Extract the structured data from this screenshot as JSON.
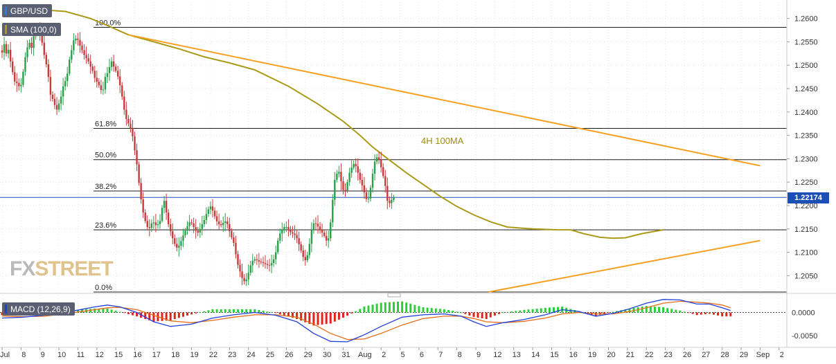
{
  "chart_data": [
    {
      "type": "candlestick",
      "symbol": "GBP/USD",
      "indicator_label": "SMA (100,0)",
      "indicator_color": "#aa9a18",
      "ylim": [
        1.2015,
        1.2635
      ],
      "y_ticks": [
        "1.2600",
        "1.2550",
        "1.2500",
        "1.2450",
        "1.2400",
        "1.2350",
        "1.2300",
        "1.2250",
        "1.2200",
        "1.2150",
        "1.2100",
        "1.2050"
      ],
      "x_tick_labels": [
        "Jul",
        "8",
        "9",
        "10",
        "11",
        "12",
        "15",
        "16",
        "17",
        "18",
        "19",
        "22",
        "23",
        "24",
        "25",
        "26",
        "29",
        "30",
        "31",
        "Aug",
        "2",
        "5",
        "6",
        "7",
        "8",
        "9",
        "12",
        "13",
        "14",
        "15",
        "16",
        "19",
        "20",
        "21",
        "22",
        "23",
        "26",
        "27",
        "28",
        "29",
        "Sep",
        "2"
      ],
      "x_tick_bars": [
        0,
        9,
        18,
        27,
        36,
        45,
        54,
        63,
        72,
        81,
        90,
        99,
        108,
        117,
        126,
        135,
        144,
        153,
        162,
        171,
        180,
        189,
        198,
        207,
        216,
        225,
        234,
        243,
        252,
        261,
        270,
        279,
        288,
        297,
        306,
        315,
        324,
        333,
        342,
        351,
        360,
        369
      ],
      "current_price": "1.22174",
      "fib_levels": [
        {
          "label": "100.0%",
          "value": 1.2581
        },
        {
          "label": "61.8%",
          "value": 1.2365
        },
        {
          "label": "50.0%",
          "value": 1.2298
        },
        {
          "label": "38.2%",
          "value": 1.2231
        },
        {
          "label": "23.6%",
          "value": 1.2148
        },
        {
          "label": "0.0%",
          "value": 1.2015
        }
      ],
      "resistance_line": {
        "x": [
          60,
          360
        ],
        "y": [
          1.2565,
          1.2285
        ]
      },
      "support_line": {
        "x": [
          231,
          360
        ],
        "y": [
          1.2015,
          1.2125
        ]
      },
      "annotation": "4H 100MA",
      "up_color": "#26a04a",
      "down_color": "#c8393b",
      "fib_color": "#1a1a1a",
      "trendline_color": "#f5a020",
      "close_path": [
        1.2532,
        1.2527,
        1.2545,
        1.2525,
        1.2533,
        1.2508,
        1.2485,
        1.2465,
        1.2462,
        1.2455,
        1.2458,
        1.2486,
        1.2517,
        1.2538,
        1.2548,
        1.2537,
        1.2562,
        1.2573,
        1.2574,
        1.2566,
        1.2548,
        1.2522,
        1.2502,
        1.2475,
        1.2437,
        1.2428,
        1.2415,
        1.2405,
        1.2418,
        1.2433,
        1.2455,
        1.2466,
        1.2482,
        1.2512,
        1.2532,
        1.2553,
        1.2557,
        1.2554,
        1.2542,
        1.2532,
        1.2522,
        1.2515,
        1.2508,
        1.2497,
        1.2488,
        1.2473,
        1.2465,
        1.2457,
        1.2447,
        1.2448,
        1.2475,
        1.2483,
        1.2496,
        1.2508,
        1.2497,
        1.2488,
        1.2476,
        1.2457,
        1.2433,
        1.2405,
        1.2385,
        1.2375,
        1.2365,
        1.2348,
        1.2318,
        1.2288,
        1.2248,
        1.2213,
        1.2185,
        1.2167,
        1.2154,
        1.2152,
        1.2162,
        1.2164,
        1.2158,
        1.216,
        1.2167,
        1.2195,
        1.221,
        1.2185,
        1.216,
        1.2145,
        1.213,
        1.2118,
        1.211,
        1.2114,
        1.2124,
        1.2136,
        1.2146,
        1.2156,
        1.2164,
        1.2162,
        1.2154,
        1.2146,
        1.2142,
        1.215,
        1.216,
        1.2169,
        1.2182,
        1.2192,
        1.2198,
        1.2189,
        1.2177,
        1.2166,
        1.216,
        1.2158,
        1.2163,
        1.2166,
        1.216,
        1.2145,
        1.2132,
        1.212,
        1.2096,
        1.2073,
        1.2059,
        1.2045,
        1.2038,
        1.2042,
        1.2056,
        1.2072,
        1.2082,
        1.2085,
        1.2083,
        1.208,
        1.2079,
        1.2077,
        1.2075,
        1.2073,
        1.2072,
        1.2077,
        1.2085,
        1.21,
        1.2125,
        1.214,
        1.2148,
        1.2154,
        1.2154,
        1.2148,
        1.2143,
        1.214,
        1.2137,
        1.213,
        1.2117,
        1.2104,
        1.209,
        1.2083,
        1.2094,
        1.2118,
        1.2148,
        1.2162,
        1.2161,
        1.2155,
        1.2147,
        1.2142,
        1.2135,
        1.2125,
        1.213,
        1.2164,
        1.2212,
        1.2255,
        1.2268,
        1.2272,
        1.2252,
        1.2233,
        1.2232,
        1.225,
        1.227,
        1.2281,
        1.2289,
        1.2284,
        1.227,
        1.2255,
        1.2243,
        1.2228,
        1.2214,
        1.2215,
        1.2238,
        1.2268,
        1.2294,
        1.2303,
        1.2298,
        1.2282,
        1.2263,
        1.2242,
        1.221,
        1.2205,
        1.2212,
        1.2217
      ],
      "sma_path": {
        "x": [
          0,
          14,
          30,
          42,
          50,
          60,
          72,
          84,
          96,
          108,
          120,
          136,
          150,
          162,
          170,
          176,
          184,
          192,
          200,
          208,
          216,
          224,
          232,
          240,
          252,
          264,
          270,
          276,
          284,
          290,
          296,
          304,
          314
        ],
        "y": [
          1.2622,
          1.262,
          1.2615,
          1.26,
          1.2585,
          1.2565,
          1.255,
          1.2535,
          1.2518,
          1.2505,
          1.249,
          1.2455,
          1.2417,
          1.238,
          1.235,
          1.2325,
          1.2297,
          1.227,
          1.2245,
          1.222,
          1.2198,
          1.218,
          1.2165,
          1.2154,
          1.215,
          1.2148,
          1.2148,
          1.214,
          1.2132,
          1.213,
          1.2131,
          1.214,
          1.2148
        ]
      }
    },
    {
      "type": "macd",
      "label": "MACD (12,26,9)",
      "ylim": [
        -0.0072,
        0.0032
      ],
      "y_ticks": [
        "0.0000",
        "-0.0050"
      ],
      "macd_color": "#1f3fd8",
      "signal_color": "#e66b18",
      "hist_up_color": "#2ecc3a",
      "hist_down_color": "#e0231b",
      "macd_line": {
        "x": [
          0,
          10,
          20,
          28,
          36,
          44,
          50,
          56,
          64,
          72,
          80,
          90,
          100,
          110,
          120,
          130,
          140,
          148,
          156,
          164,
          172,
          180,
          190,
          200,
          210,
          218,
          224,
          230,
          238,
          248,
          258,
          266,
          274,
          282,
          290,
          298,
          306,
          314,
          322,
          330,
          336,
          342,
          346
        ],
        "y": [
          -0.0012,
          -0.001,
          -0.0006,
          0.0,
          0.0005,
          0.0012,
          0.0016,
          0.0012,
          0.0,
          -0.002,
          -0.003,
          -0.0025,
          -0.0012,
          -0.0005,
          0.0,
          -0.0006,
          -0.002,
          -0.0045,
          -0.0062,
          -0.0063,
          -0.0048,
          -0.003,
          -0.001,
          -0.0005,
          -0.0003,
          -0.0008,
          -0.002,
          -0.003,
          -0.0022,
          -0.0015,
          -0.0005,
          0.0006,
          0.0002,
          -0.0008,
          -0.0002,
          0.0008,
          0.002,
          0.0028,
          0.0027,
          0.0018,
          0.0018,
          0.001,
          0.0004
        ]
      },
      "signal_line": {
        "x": [
          0,
          10,
          20,
          28,
          36,
          44,
          50,
          56,
          64,
          72,
          80,
          90,
          100,
          110,
          120,
          130,
          140,
          148,
          156,
          164,
          172,
          180,
          190,
          200,
          210,
          218,
          224,
          230,
          238,
          248,
          258,
          266,
          274,
          282,
          290,
          298,
          306,
          314,
          322,
          330,
          336,
          342,
          346
        ],
        "y": [
          -0.0008,
          -0.0009,
          -0.0008,
          -0.0004,
          0.0001,
          0.0006,
          0.001,
          0.0011,
          0.0006,
          -0.0006,
          -0.0018,
          -0.0022,
          -0.0017,
          -0.001,
          -0.0005,
          -0.0005,
          -0.001,
          -0.0025,
          -0.0045,
          -0.0058,
          -0.0057,
          -0.0045,
          -0.0027,
          -0.0013,
          -0.0008,
          -0.0008,
          -0.0013,
          -0.002,
          -0.0022,
          -0.0019,
          -0.0012,
          -0.0003,
          0.0,
          -0.0003,
          -0.0003,
          0.0002,
          0.001,
          0.002,
          0.0024,
          0.0022,
          0.002,
          0.0016,
          0.001
        ]
      }
    }
  ]
}
